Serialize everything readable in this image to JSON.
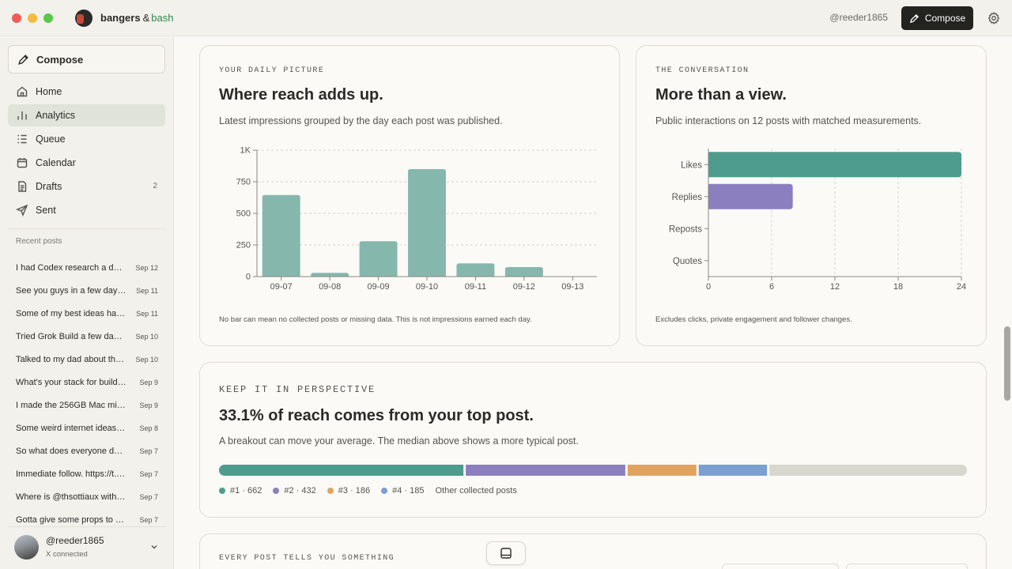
{
  "window": {
    "app_name": "bangers",
    "app_amp": "&",
    "app_name_suffix": "bash",
    "handle": "@reeder1865",
    "compose_label": "Compose"
  },
  "sidebar": {
    "compose_label": "Compose",
    "nav": [
      {
        "label": "Home",
        "icon": "home-icon"
      },
      {
        "label": "Analytics",
        "icon": "analytics-icon",
        "active": true
      },
      {
        "label": "Queue",
        "icon": "queue-icon"
      },
      {
        "label": "Calendar",
        "icon": "calendar-icon"
      },
      {
        "label": "Drafts",
        "icon": "drafts-icon",
        "badge": "2"
      },
      {
        "label": "Sent",
        "icon": "sent-icon"
      }
    ],
    "recent_title": "Recent posts",
    "recent": [
      {
        "title": "I had Codex research a dom...",
        "date": "Sep 12"
      },
      {
        "title": "See you guys in a few days. ...",
        "date": "Sep 11"
      },
      {
        "title": "Some of my best ideas hap...",
        "date": "Sep 11"
      },
      {
        "title": "Tried Grok Build a few days ...",
        "date": "Sep 10"
      },
      {
        "title": "Talked to my dad about the ...",
        "date": "Sep 10"
      },
      {
        "title": "What's your stack for buildin...",
        "date": "Sep 9"
      },
      {
        "title": "I made the 256GB Mac mini ...",
        "date": "Sep 9"
      },
      {
        "title": "Some weird internet ideas ar...",
        "date": "Sep 8"
      },
      {
        "title": "So what does everyone do ...",
        "date": "Sep 7"
      },
      {
        "title": "Immediate follow. https://t.c...",
        "date": "Sep 7"
      },
      {
        "title": "Where is @thsottiaux with t...",
        "date": "Sep 7"
      },
      {
        "title": "Gotta give some props to @...",
        "date": "Sep 7"
      }
    ],
    "account": {
      "name": "@reeder1865",
      "status": "X connected"
    }
  },
  "daily": {
    "kicker": "YOUR DAILY PICTURE",
    "title": "Where reach adds up.",
    "subtitle": "Latest impressions grouped by the day each post was published.",
    "footnote": "No bar can mean no collected posts or missing data. This is not impressions earned each day."
  },
  "conversation": {
    "kicker": "THE CONVERSATION",
    "title": "More than a view.",
    "subtitle": "Public interactions on 12 posts with matched measurements.",
    "footnote": "Excludes clicks, private engagement and follower changes."
  },
  "perspective": {
    "kicker": "KEEP IT IN PERSPECTIVE",
    "title": "33.1% of reach comes from your top post.",
    "subtitle": "A breakout can move your average. The median above shows a more typical post.",
    "legend": [
      {
        "label": "#1 · 662",
        "color": "#4e9c8d"
      },
      {
        "label": "#2 · 432",
        "color": "#8b7fbf"
      },
      {
        "label": "#3 · 186",
        "color": "#e0a35f"
      },
      {
        "label": "#4 · 185",
        "color": "#7b9fd0"
      },
      {
        "label": "Other collected posts",
        "color": ""
      }
    ]
  },
  "every_post": {
    "kicker": "EVERY POST TELLS YOU SOMETHING"
  },
  "chart_data": [
    {
      "type": "bar",
      "categories": [
        "09-07",
        "09-08",
        "09-09",
        "09-10",
        "09-11",
        "09-12",
        "09-13"
      ],
      "values": [
        645,
        30,
        280,
        850,
        105,
        75,
        0
      ],
      "ylim": [
        0,
        1000
      ],
      "yticks": [
        "0",
        "250",
        "500",
        "750",
        "1K"
      ],
      "ytick_values": [
        0,
        250,
        500,
        750,
        1000
      ],
      "color": "#85b7ad",
      "grid": true
    },
    {
      "type": "bar",
      "orientation": "horizontal",
      "categories": [
        "Likes",
        "Replies",
        "Reposts",
        "Quotes"
      ],
      "values": [
        24,
        8,
        0,
        0
      ],
      "xlim": [
        0,
        24
      ],
      "xticks": [
        "0",
        "6",
        "12",
        "18",
        "24"
      ],
      "xtick_values": [
        0,
        6,
        12,
        18,
        24
      ],
      "colors": [
        "#4e9c8d",
        "#8b7fbf",
        "#e0a35f",
        "#7b9fd0"
      ],
      "grid": true
    },
    {
      "type": "bar",
      "orientation": "stacked-horizontal",
      "categories": [
        "#1",
        "#2",
        "#3",
        "#4",
        "Other collected posts"
      ],
      "values": [
        662,
        432,
        186,
        185,
        535
      ],
      "colors": [
        "#4e9c8d",
        "#8b7fbf",
        "#e0a35f",
        "#7b9fd0",
        "#d8d7cf"
      ]
    }
  ]
}
